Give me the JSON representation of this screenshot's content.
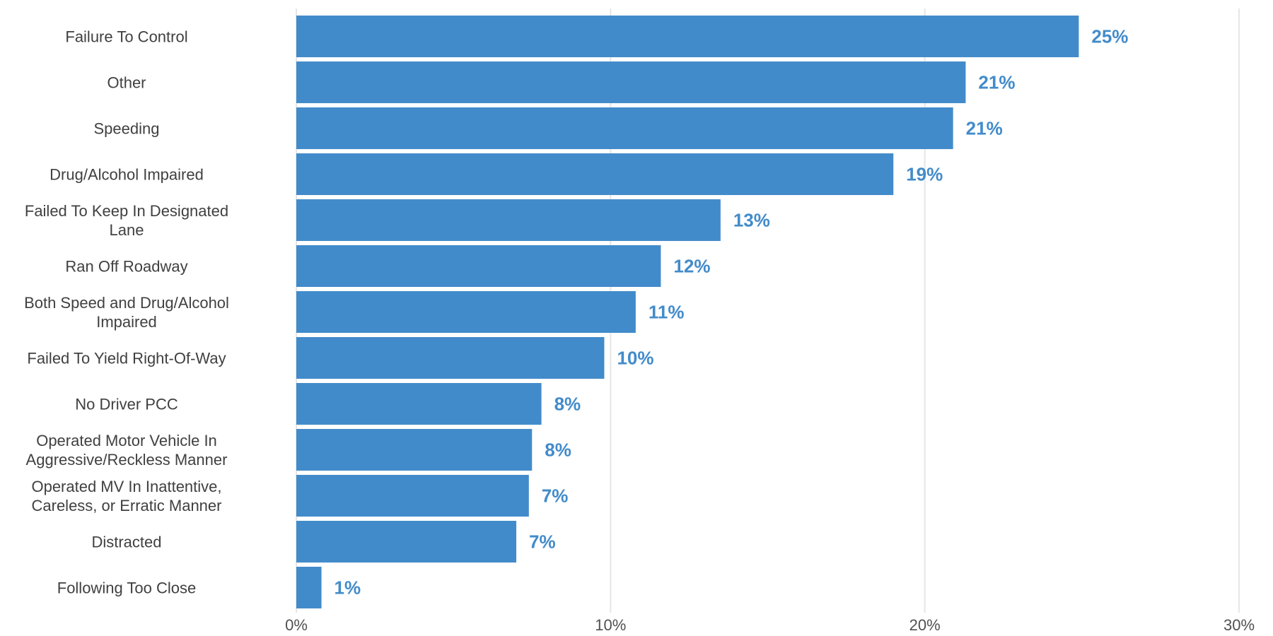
{
  "chart_data": {
    "type": "bar",
    "orientation": "horizontal",
    "categories": [
      [
        "Failure To Control"
      ],
      [
        "Other"
      ],
      [
        "Speeding"
      ],
      [
        "Drug/Alcohol Impaired"
      ],
      [
        "Failed To Keep In Designated",
        "Lane"
      ],
      [
        "Ran Off Roadway"
      ],
      [
        "Both Speed and Drug/Alcohol",
        "Impaired"
      ],
      [
        "Failed To Yield Right-Of-Way"
      ],
      [
        "No Driver PCC"
      ],
      [
        "Operated Motor Vehicle In",
        "Aggressive/Reckless Manner"
      ],
      [
        "Operated MV In Inattentive,",
        "Careless, or Erratic Manner"
      ],
      [
        "Distracted"
      ],
      [
        "Following Too Close"
      ]
    ],
    "values": [
      24.9,
      21.3,
      20.9,
      19.0,
      13.5,
      11.6,
      10.8,
      9.8,
      7.8,
      7.5,
      7.4,
      7.0,
      0.8
    ],
    "data_labels": [
      "25%",
      "21%",
      "21%",
      "19%",
      "13%",
      "12%",
      "11%",
      "10%",
      "8%",
      "8%",
      "7%",
      "7%",
      "1%"
    ],
    "xlim": [
      0,
      30
    ],
    "xticks": [
      0,
      10,
      20,
      30
    ],
    "xtick_labels": [
      "0%",
      "10%",
      "20%",
      "30%"
    ],
    "title": "",
    "xlabel": "",
    "ylabel": "",
    "grid": "vertical",
    "legend": "none",
    "colors": {
      "bar": "#428bca",
      "data_label": "#428bca",
      "grid": "#e6e6e6",
      "category_text": "#404040",
      "tick_text": "#505050"
    }
  }
}
